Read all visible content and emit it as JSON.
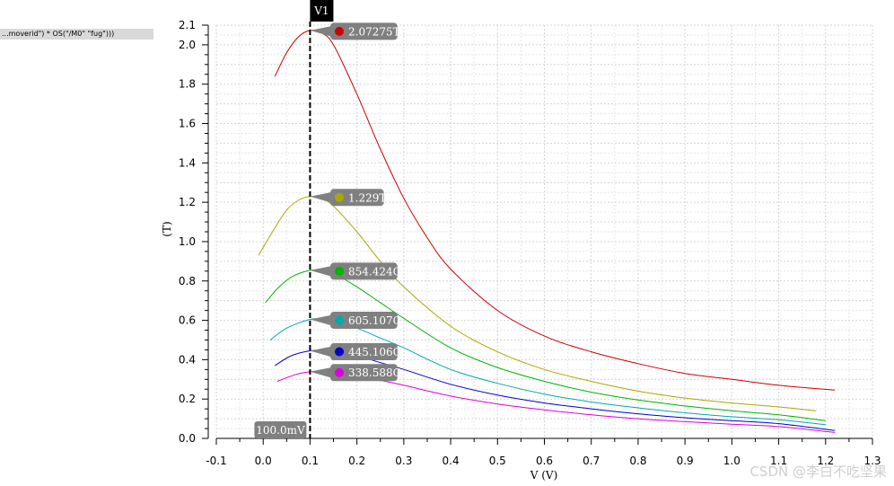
{
  "expression_tag": "...moverid\") * OS(\"/M0\" \"fug\")))",
  "watermark": "CSDN @李白不吃坚果",
  "chart_data": {
    "type": "line",
    "xlabel": "V (V)",
    "ylabel": "(T)",
    "xlim": [
      -0.1,
      1.3
    ],
    "ylim": [
      0.0,
      2.1
    ],
    "x_ticks": [
      "-0.1",
      "0.0",
      "0.1",
      "0.2",
      "0.3",
      "0.4",
      "0.5",
      "0.6",
      "0.7",
      "0.8",
      "0.9",
      "1.0",
      "1.1",
      "1.2",
      "1.3"
    ],
    "y_ticks": [
      "0.0",
      "0.2",
      "0.4",
      "0.6",
      "0.8",
      "1.0",
      "1.2",
      "1.4",
      "1.6",
      "1.8",
      "2.0",
      "2.1"
    ],
    "grid": true,
    "vertical_marker": {
      "label": "V1",
      "x": 0.1,
      "x_readout": "100.0mV"
    },
    "series": [
      {
        "color": "#cc0000",
        "marker_label": "2.07275T",
        "points": [
          [
            0.025,
            1.84
          ],
          [
            0.05,
            1.96
          ],
          [
            0.075,
            2.04
          ],
          [
            0.1,
            2.073
          ],
          [
            0.125,
            2.06
          ],
          [
            0.15,
            2.0
          ],
          [
            0.2,
            1.75
          ],
          [
            0.25,
            1.47
          ],
          [
            0.3,
            1.22
          ],
          [
            0.35,
            1.02
          ],
          [
            0.4,
            0.86
          ],
          [
            0.5,
            0.65
          ],
          [
            0.6,
            0.52
          ],
          [
            0.7,
            0.44
          ],
          [
            0.8,
            0.38
          ],
          [
            0.9,
            0.33
          ],
          [
            1.0,
            0.3
          ],
          [
            1.1,
            0.27
          ],
          [
            1.22,
            0.245
          ]
        ]
      },
      {
        "color": "#a8a800",
        "marker_label": "1.229T",
        "points": [
          [
            -0.01,
            0.93
          ],
          [
            0.025,
            1.07
          ],
          [
            0.05,
            1.16
          ],
          [
            0.075,
            1.21
          ],
          [
            0.1,
            1.229
          ],
          [
            0.125,
            1.22
          ],
          [
            0.15,
            1.18
          ],
          [
            0.2,
            1.05
          ],
          [
            0.25,
            0.9
          ],
          [
            0.3,
            0.77
          ],
          [
            0.4,
            0.57
          ],
          [
            0.5,
            0.44
          ],
          [
            0.6,
            0.35
          ],
          [
            0.7,
            0.29
          ],
          [
            0.8,
            0.24
          ],
          [
            0.9,
            0.205
          ],
          [
            1.0,
            0.18
          ],
          [
            1.1,
            0.16
          ],
          [
            1.18,
            0.14
          ]
        ]
      },
      {
        "color": "#00b400",
        "marker_label": "854.424G",
        "points": [
          [
            0.005,
            0.69
          ],
          [
            0.03,
            0.76
          ],
          [
            0.06,
            0.82
          ],
          [
            0.1,
            0.854
          ],
          [
            0.125,
            0.852
          ],
          [
            0.15,
            0.84
          ],
          [
            0.2,
            0.77
          ],
          [
            0.25,
            0.69
          ],
          [
            0.3,
            0.61
          ],
          [
            0.4,
            0.46
          ],
          [
            0.5,
            0.36
          ],
          [
            0.6,
            0.29
          ],
          [
            0.7,
            0.235
          ],
          [
            0.8,
            0.195
          ],
          [
            0.9,
            0.165
          ],
          [
            1.0,
            0.14
          ],
          [
            1.1,
            0.12
          ],
          [
            1.2,
            0.09
          ]
        ]
      },
      {
        "color": "#00aaaa",
        "marker_label": "605.107G",
        "points": [
          [
            0.015,
            0.5
          ],
          [
            0.05,
            0.56
          ],
          [
            0.1,
            0.605
          ],
          [
            0.125,
            0.605
          ],
          [
            0.15,
            0.595
          ],
          [
            0.2,
            0.56
          ],
          [
            0.25,
            0.51
          ],
          [
            0.3,
            0.46
          ],
          [
            0.4,
            0.35
          ],
          [
            0.5,
            0.28
          ],
          [
            0.6,
            0.225
          ],
          [
            0.7,
            0.185
          ],
          [
            0.8,
            0.155
          ],
          [
            0.9,
            0.13
          ],
          [
            1.0,
            0.11
          ],
          [
            1.1,
            0.095
          ],
          [
            1.2,
            0.07
          ]
        ]
      },
      {
        "color": "#0000c8",
        "marker_label": "445.106G",
        "points": [
          [
            0.025,
            0.37
          ],
          [
            0.06,
            0.42
          ],
          [
            0.1,
            0.445
          ],
          [
            0.125,
            0.445
          ],
          [
            0.15,
            0.44
          ],
          [
            0.2,
            0.42
          ],
          [
            0.25,
            0.385
          ],
          [
            0.3,
            0.35
          ],
          [
            0.4,
            0.275
          ],
          [
            0.5,
            0.22
          ],
          [
            0.6,
            0.18
          ],
          [
            0.7,
            0.15
          ],
          [
            0.8,
            0.125
          ],
          [
            0.9,
            0.105
          ],
          [
            1.0,
            0.09
          ],
          [
            1.1,
            0.075
          ],
          [
            1.22,
            0.04
          ]
        ]
      },
      {
        "color": "#dd00dd",
        "marker_label": "338.588G",
        "points": [
          [
            0.03,
            0.29
          ],
          [
            0.07,
            0.325
          ],
          [
            0.1,
            0.339
          ],
          [
            0.125,
            0.34
          ],
          [
            0.15,
            0.335
          ],
          [
            0.2,
            0.32
          ],
          [
            0.25,
            0.295
          ],
          [
            0.3,
            0.27
          ],
          [
            0.4,
            0.215
          ],
          [
            0.5,
            0.175
          ],
          [
            0.6,
            0.145
          ],
          [
            0.7,
            0.12
          ],
          [
            0.8,
            0.1
          ],
          [
            0.9,
            0.085
          ],
          [
            1.0,
            0.072
          ],
          [
            1.1,
            0.06
          ],
          [
            1.22,
            0.03
          ]
        ]
      }
    ]
  }
}
